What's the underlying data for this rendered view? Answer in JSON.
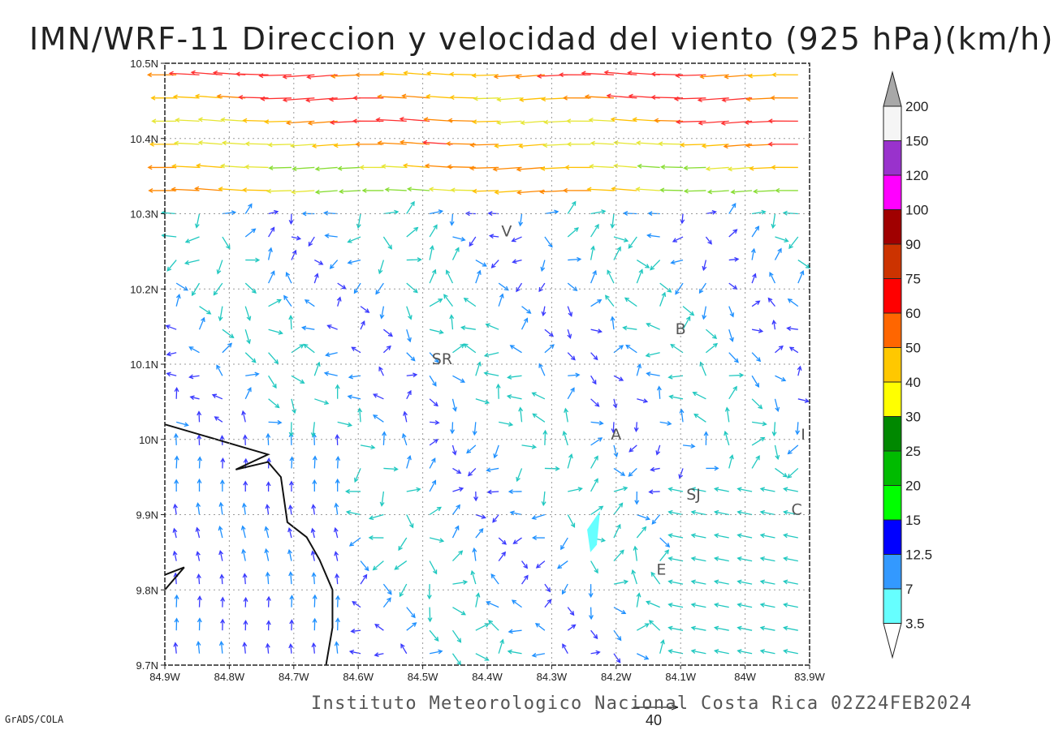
{
  "title": "IMN/WRF-11 Direccion y velocidad del viento (925 hPa)(km/h)",
  "footer": "Instituto Meteorologico Nacional Costa Rica 02Z24FEB2024",
  "credit": "GrADS/COLA",
  "ref_vector_label": "40",
  "x_ticks": [
    "84.9W",
    "84.8W",
    "84.7W",
    "84.6W",
    "84.5W",
    "84.4W",
    "84.3W",
    "84.2W",
    "84.1W",
    "84W",
    "83.9W"
  ],
  "y_ticks": [
    "10.5N",
    "10.4N",
    "10.3N",
    "10.2N",
    "10.1N",
    "10N",
    "9.9N",
    "9.8N",
    "9.7N"
  ],
  "colorbar": {
    "labels": [
      "200",
      "150",
      "120",
      "100",
      "90",
      "75",
      "60",
      "50",
      "40",
      "30",
      "25",
      "20",
      "15",
      "12.5",
      "7",
      "3.5"
    ],
    "colors": [
      "#a8a8a8",
      "#f5f5f5",
      "#9932cc",
      "#ff00ff",
      "#a00000",
      "#cc3300",
      "#ff0000",
      "#ff6600",
      "#ffc800",
      "#ffff00",
      "#008800",
      "#00bb00",
      "#00ff00",
      "#0000ff",
      "#3399ff",
      "#66ffff",
      "#ffffff"
    ]
  },
  "cities": [
    {
      "label": "V",
      "lon": -84.37,
      "lat": 10.27
    },
    {
      "label": "SR",
      "lon": -84.47,
      "lat": 10.1
    },
    {
      "label": "B",
      "lon": -84.1,
      "lat": 10.14
    },
    {
      "label": "A",
      "lon": -84.2,
      "lat": 10.0
    },
    {
      "label": "SJ",
      "lon": -84.08,
      "lat": 9.92
    },
    {
      "label": "C",
      "lon": -83.92,
      "lat": 9.9
    },
    {
      "label": "E",
      "lon": -84.13,
      "lat": 9.82
    },
    {
      "label": "I",
      "lon": -83.91,
      "lat": 10.0
    }
  ],
  "map": {
    "lon_range": [
      -84.9,
      -83.9
    ],
    "lat_range": [
      9.7,
      10.5
    ],
    "grid": true,
    "region_note": ""
  }
}
